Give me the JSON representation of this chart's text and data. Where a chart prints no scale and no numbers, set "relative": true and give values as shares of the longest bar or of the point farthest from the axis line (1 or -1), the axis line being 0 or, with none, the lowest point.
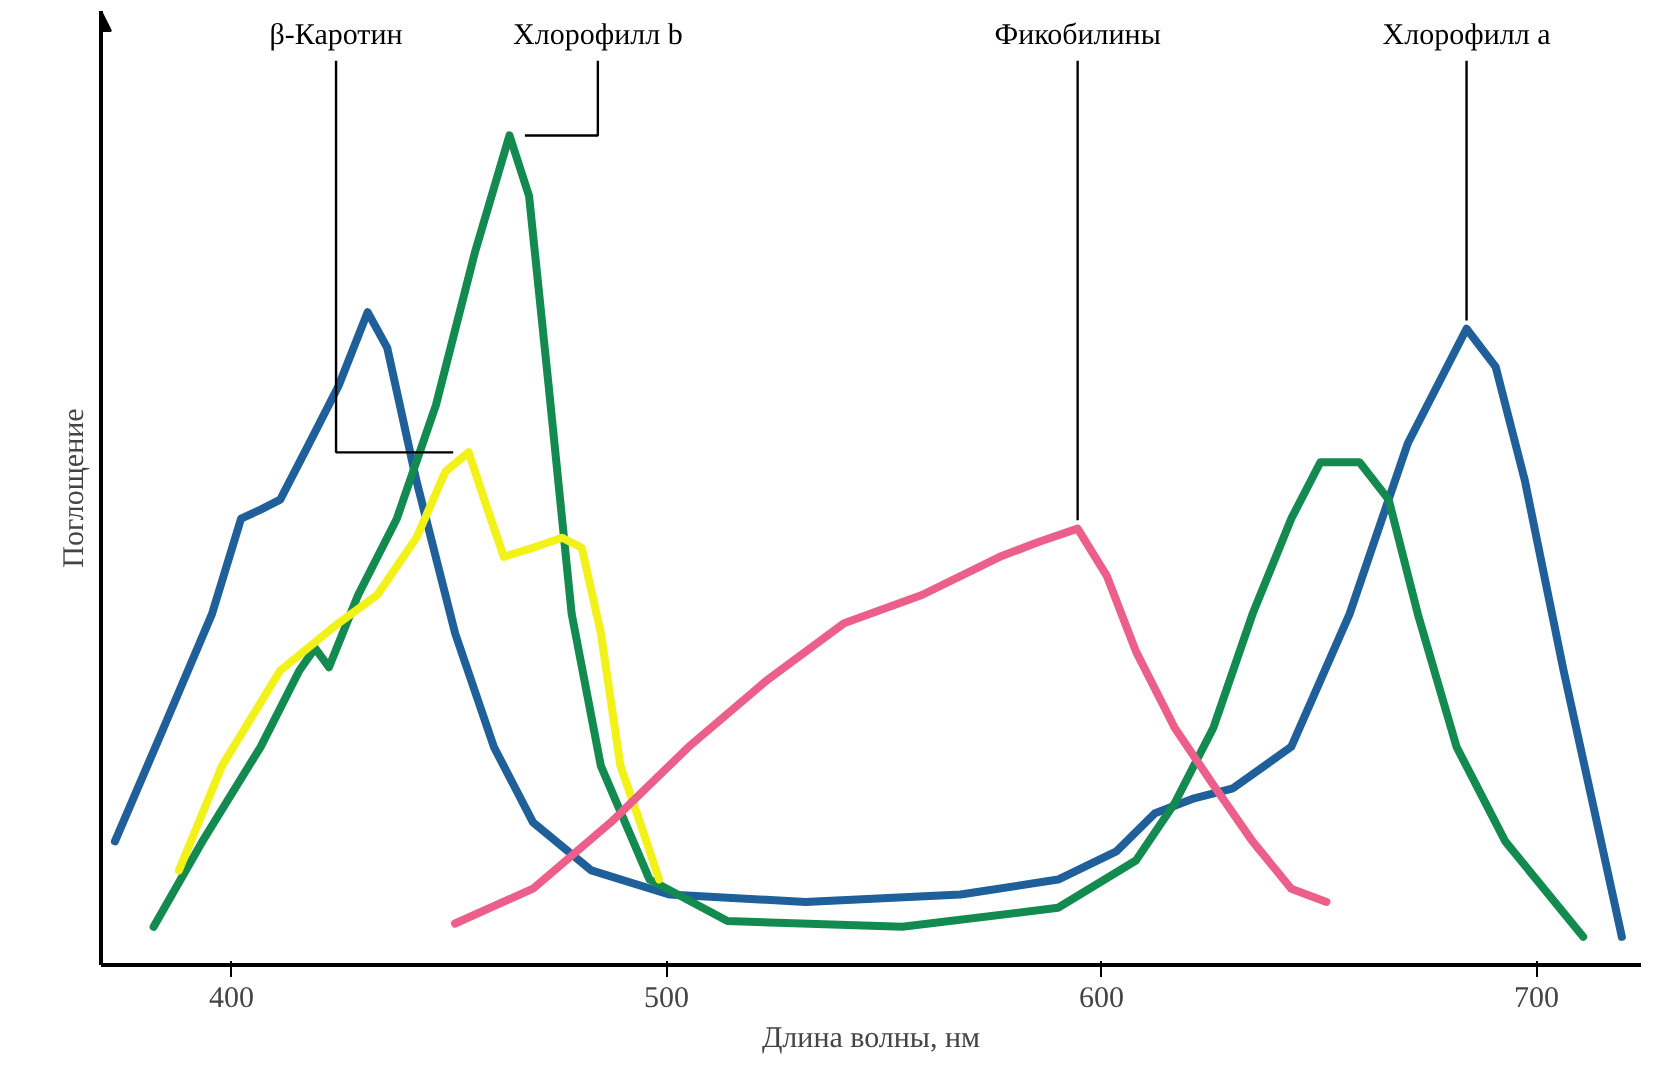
{
  "chart_data": {
    "type": "line",
    "relative": true,
    "xlabel": "Длина волны, нм",
    "ylabel": "Поглощение",
    "xlim": [
      370,
      724
    ],
    "xticks": [
      400,
      500,
      600,
      700
    ],
    "grid": false,
    "marker": "none",
    "line_style": "solid",
    "series": [
      {
        "name": "Хлорофилл a",
        "color": "#1f5f9a",
        "x": [
          373.2,
          384.4,
          395.5,
          402.2,
          406.7,
          411.2,
          417.9,
          424.6,
          431.3,
          435.8,
          442.5,
          451.4,
          460.3,
          469.3,
          482.7,
          500.6,
          531.9,
          567.6,
          590.0,
          603.4,
          612.3,
          621.3,
          630.2,
          643.6,
          657.0,
          670.4,
          683.9,
          690.6,
          697.3,
          706.2,
          712.9,
          719.6
        ],
        "values": [
          0.149,
          0.286,
          0.423,
          0.538,
          0.549,
          0.561,
          0.629,
          0.698,
          0.787,
          0.744,
          0.584,
          0.4,
          0.263,
          0.172,
          0.114,
          0.085,
          0.076,
          0.085,
          0.103,
          0.137,
          0.183,
          0.201,
          0.213,
          0.263,
          0.423,
          0.629,
          0.767,
          0.721,
          0.584,
          0.355,
          0.195,
          0.034
        ]
      },
      {
        "name": "Хлорофилл b",
        "color": "#138a50",
        "x": [
          382.1,
          393.3,
          406.7,
          415.6,
          419.2,
          422.4,
          429.1,
          438.0,
          447.0,
          455.9,
          463.9,
          468.4,
          472.9,
          478.2,
          484.9,
          496.1,
          514.0,
          554.2,
          590.0,
          607.9,
          616.8,
          625.7,
          634.7,
          643.6,
          650.3,
          659.3,
          666.0,
          672.7,
          681.6,
          692.8,
          710.7
        ],
        "values": [
          0.046,
          0.149,
          0.263,
          0.355,
          0.382,
          0.359,
          0.446,
          0.538,
          0.675,
          0.858,
          1.0,
          0.927,
          0.698,
          0.423,
          0.24,
          0.103,
          0.053,
          0.046,
          0.069,
          0.126,
          0.195,
          0.286,
          0.423,
          0.538,
          0.606,
          0.606,
          0.561,
          0.423,
          0.263,
          0.149,
          0.034
        ]
      },
      {
        "name": "β-Каротин",
        "color": "#f2f218",
        "x": [
          387.9,
          397.8,
          411.2,
          424.6,
          433.5,
          442.5,
          449.2,
          454.5,
          458.1,
          462.6,
          469.3,
          476.0,
          480.5,
          484.9,
          489.4,
          493.9,
          498.3
        ],
        "values": [
          0.114,
          0.24,
          0.355,
          0.412,
          0.446,
          0.515,
          0.595,
          0.618,
          0.561,
          0.492,
          0.503,
          0.515,
          0.503,
          0.4,
          0.24,
          0.172,
          0.103
        ]
      },
      {
        "name": "Фикобилины",
        "color": "#ec5f8a",
        "x": [
          451.4,
          469.3,
          487.2,
          505.1,
          523.0,
          540.8,
          558.7,
          576.6,
          585.5,
          594.5,
          601.2,
          607.9,
          616.8,
          625.7,
          634.7,
          643.6,
          651.7
        ],
        "values": [
          0.05,
          0.092,
          0.172,
          0.263,
          0.343,
          0.412,
          0.446,
          0.492,
          0.51,
          0.526,
          0.469,
          0.378,
          0.286,
          0.217,
          0.149,
          0.092,
          0.076
        ]
      }
    ]
  }
}
